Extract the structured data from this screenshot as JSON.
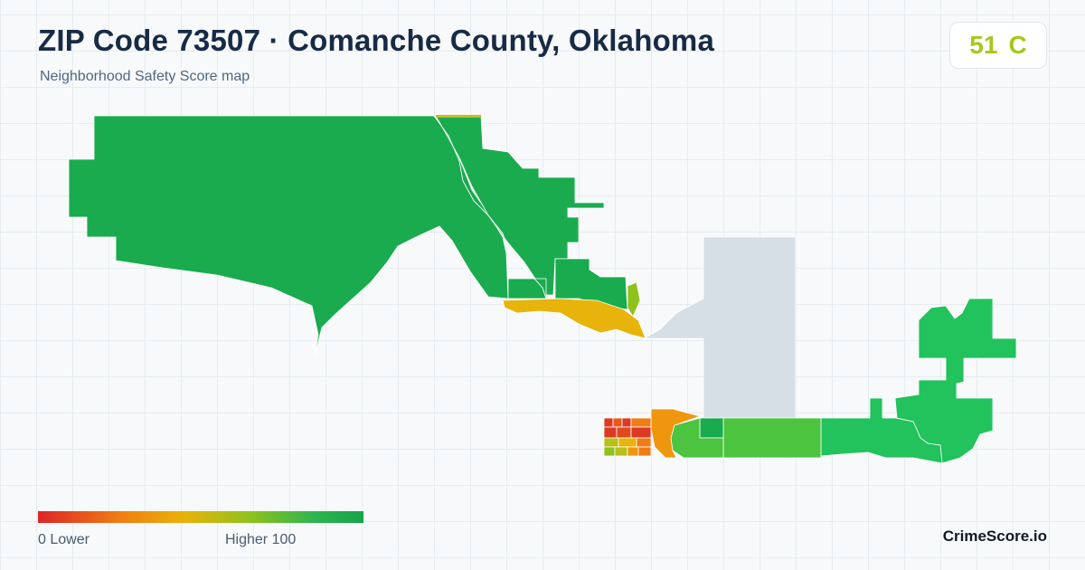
{
  "header": {
    "title": "ZIP Code 73507 · Comanche County, Oklahoma",
    "subtitle": "Neighborhood Safety Score map"
  },
  "score": {
    "value": "51",
    "grade": "C",
    "color": "#a6c81a"
  },
  "legend": {
    "low_label": "0  Lower",
    "high_label": "Higher  100",
    "colors": [
      "#dc2626",
      "#f07c14",
      "#e8b30a",
      "#8fc21c",
      "#2eb450",
      "#16a34a"
    ]
  },
  "map": {
    "no_data_color": "#d6dee6",
    "regions_colors": {
      "high_safety": "#1aab4e",
      "mid_high": "#22c25c",
      "mid": "#4cc440",
      "yellow_green": "#8fc21c",
      "amber": "#e8b30a",
      "orange": "#f07c14",
      "red": "#dc3a22"
    }
  },
  "brand": {
    "name": "CrimeScore.io"
  }
}
